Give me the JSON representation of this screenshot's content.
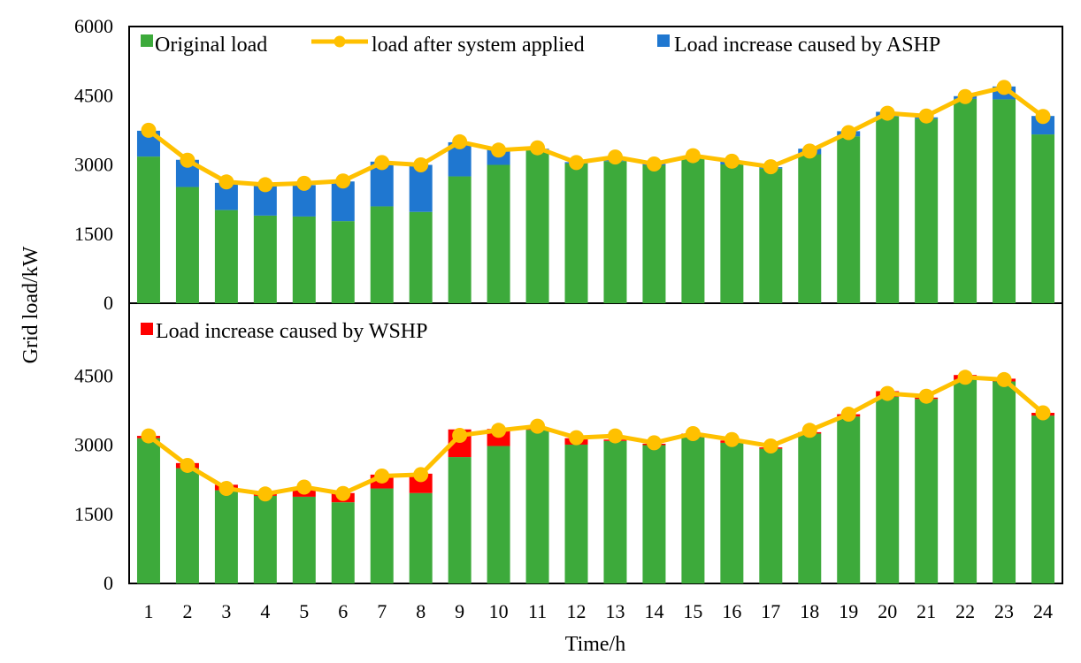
{
  "chart_data": [
    {
      "type": "bar",
      "panel": "top",
      "stacked": true,
      "ylabel": "Grid load/kW",
      "xlabel": "Time/h",
      "ylim": [
        0,
        6000
      ],
      "yticks": [
        "0",
        "1500",
        "3000",
        "4500",
        "6000"
      ],
      "categories": [
        "1",
        "2",
        "3",
        "4",
        "5",
        "6",
        "7",
        "8",
        "9",
        "10",
        "11",
        "12",
        "13",
        "14",
        "15",
        "16",
        "17",
        "18",
        "19",
        "20",
        "21",
        "22",
        "23",
        "24"
      ],
      "series": [
        {
          "name": "Original load",
          "kind": "bar",
          "color": "#3DAA3B",
          "values": [
            3180,
            2520,
            2020,
            1900,
            1880,
            1780,
            2100,
            1980,
            2750,
            3000,
            3320,
            3030,
            3080,
            2990,
            3140,
            3010,
            2920,
            3230,
            3620,
            4050,
            4000,
            4430,
            4420,
            3660
          ]
        },
        {
          "name": "Load increase caused by ASHP",
          "kind": "bar",
          "color": "#1F77D0",
          "values": [
            560,
            590,
            590,
            650,
            680,
            860,
            970,
            1020,
            740,
            330,
            30,
            30,
            30,
            30,
            30,
            60,
            30,
            120,
            110,
            100,
            30,
            60,
            280,
            400
          ]
        },
        {
          "name": "load after system applied",
          "kind": "line",
          "color": "#FFC000",
          "values": [
            3750,
            3100,
            2630,
            2570,
            2600,
            2650,
            3050,
            3000,
            3500,
            3320,
            3370,
            3050,
            3170,
            3020,
            3200,
            3080,
            2960,
            3300,
            3700,
            4120,
            4060,
            4480,
            4680,
            4050
          ]
        }
      ]
    },
    {
      "type": "bar",
      "panel": "bottom",
      "stacked": true,
      "ylabel": "Grid load/kW",
      "xlabel": "Time/h",
      "ylim": [
        0,
        6000
      ],
      "yticks": [
        "0",
        "1500",
        "3000",
        "4500"
      ],
      "categories": [
        "1",
        "2",
        "3",
        "4",
        "5",
        "6",
        "7",
        "8",
        "9",
        "10",
        "11",
        "12",
        "13",
        "14",
        "15",
        "16",
        "17",
        "18",
        "19",
        "20",
        "21",
        "22",
        "23",
        "24"
      ],
      "series": [
        {
          "name": "Original load",
          "kind": "bar",
          "color": "#3DAA3B",
          "values": [
            3150,
            2500,
            2020,
            1900,
            1880,
            1760,
            2060,
            1960,
            2740,
            2980,
            3330,
            3010,
            3090,
            3000,
            3170,
            3050,
            2920,
            3250,
            3620,
            4050,
            4000,
            4420,
            4380,
            3640
          ]
        },
        {
          "name": "Load increase caused by WSHP",
          "kind": "bar",
          "color": "#FF0000",
          "values": [
            50,
            110,
            120,
            50,
            190,
            200,
            300,
            420,
            600,
            370,
            30,
            140,
            30,
            30,
            80,
            50,
            30,
            30,
            50,
            120,
            30,
            100,
            60,
            60
          ]
        },
        {
          "name": "load after system applied",
          "kind": "line",
          "color": "#FFC000",
          "values": [
            3200,
            2560,
            2060,
            1940,
            2090,
            1950,
            2330,
            2360,
            3210,
            3320,
            3410,
            3160,
            3200,
            3050,
            3250,
            3120,
            2980,
            3320,
            3670,
            4120,
            4060,
            4470,
            4420,
            3700
          ]
        }
      ]
    }
  ],
  "legend": {
    "original": "Original load",
    "line": "load after system applied",
    "ashp": "Load increase caused by ASHP",
    "wshp": "Load increase caused by WSHP"
  },
  "axis": {
    "ylabel": "Grid load/kW",
    "xlabel": "Time/h"
  },
  "colors": {
    "original": "#3DAA3B",
    "ashp": "#1F77D0",
    "wshp": "#FF0000",
    "line": "#FFC000",
    "marker": "#FFC000"
  },
  "icons": {
    "legend-original": "green-square-icon",
    "legend-line": "line-with-dot-icon",
    "legend-ashp": "blue-square-icon",
    "legend-wshp": "red-square-icon"
  }
}
